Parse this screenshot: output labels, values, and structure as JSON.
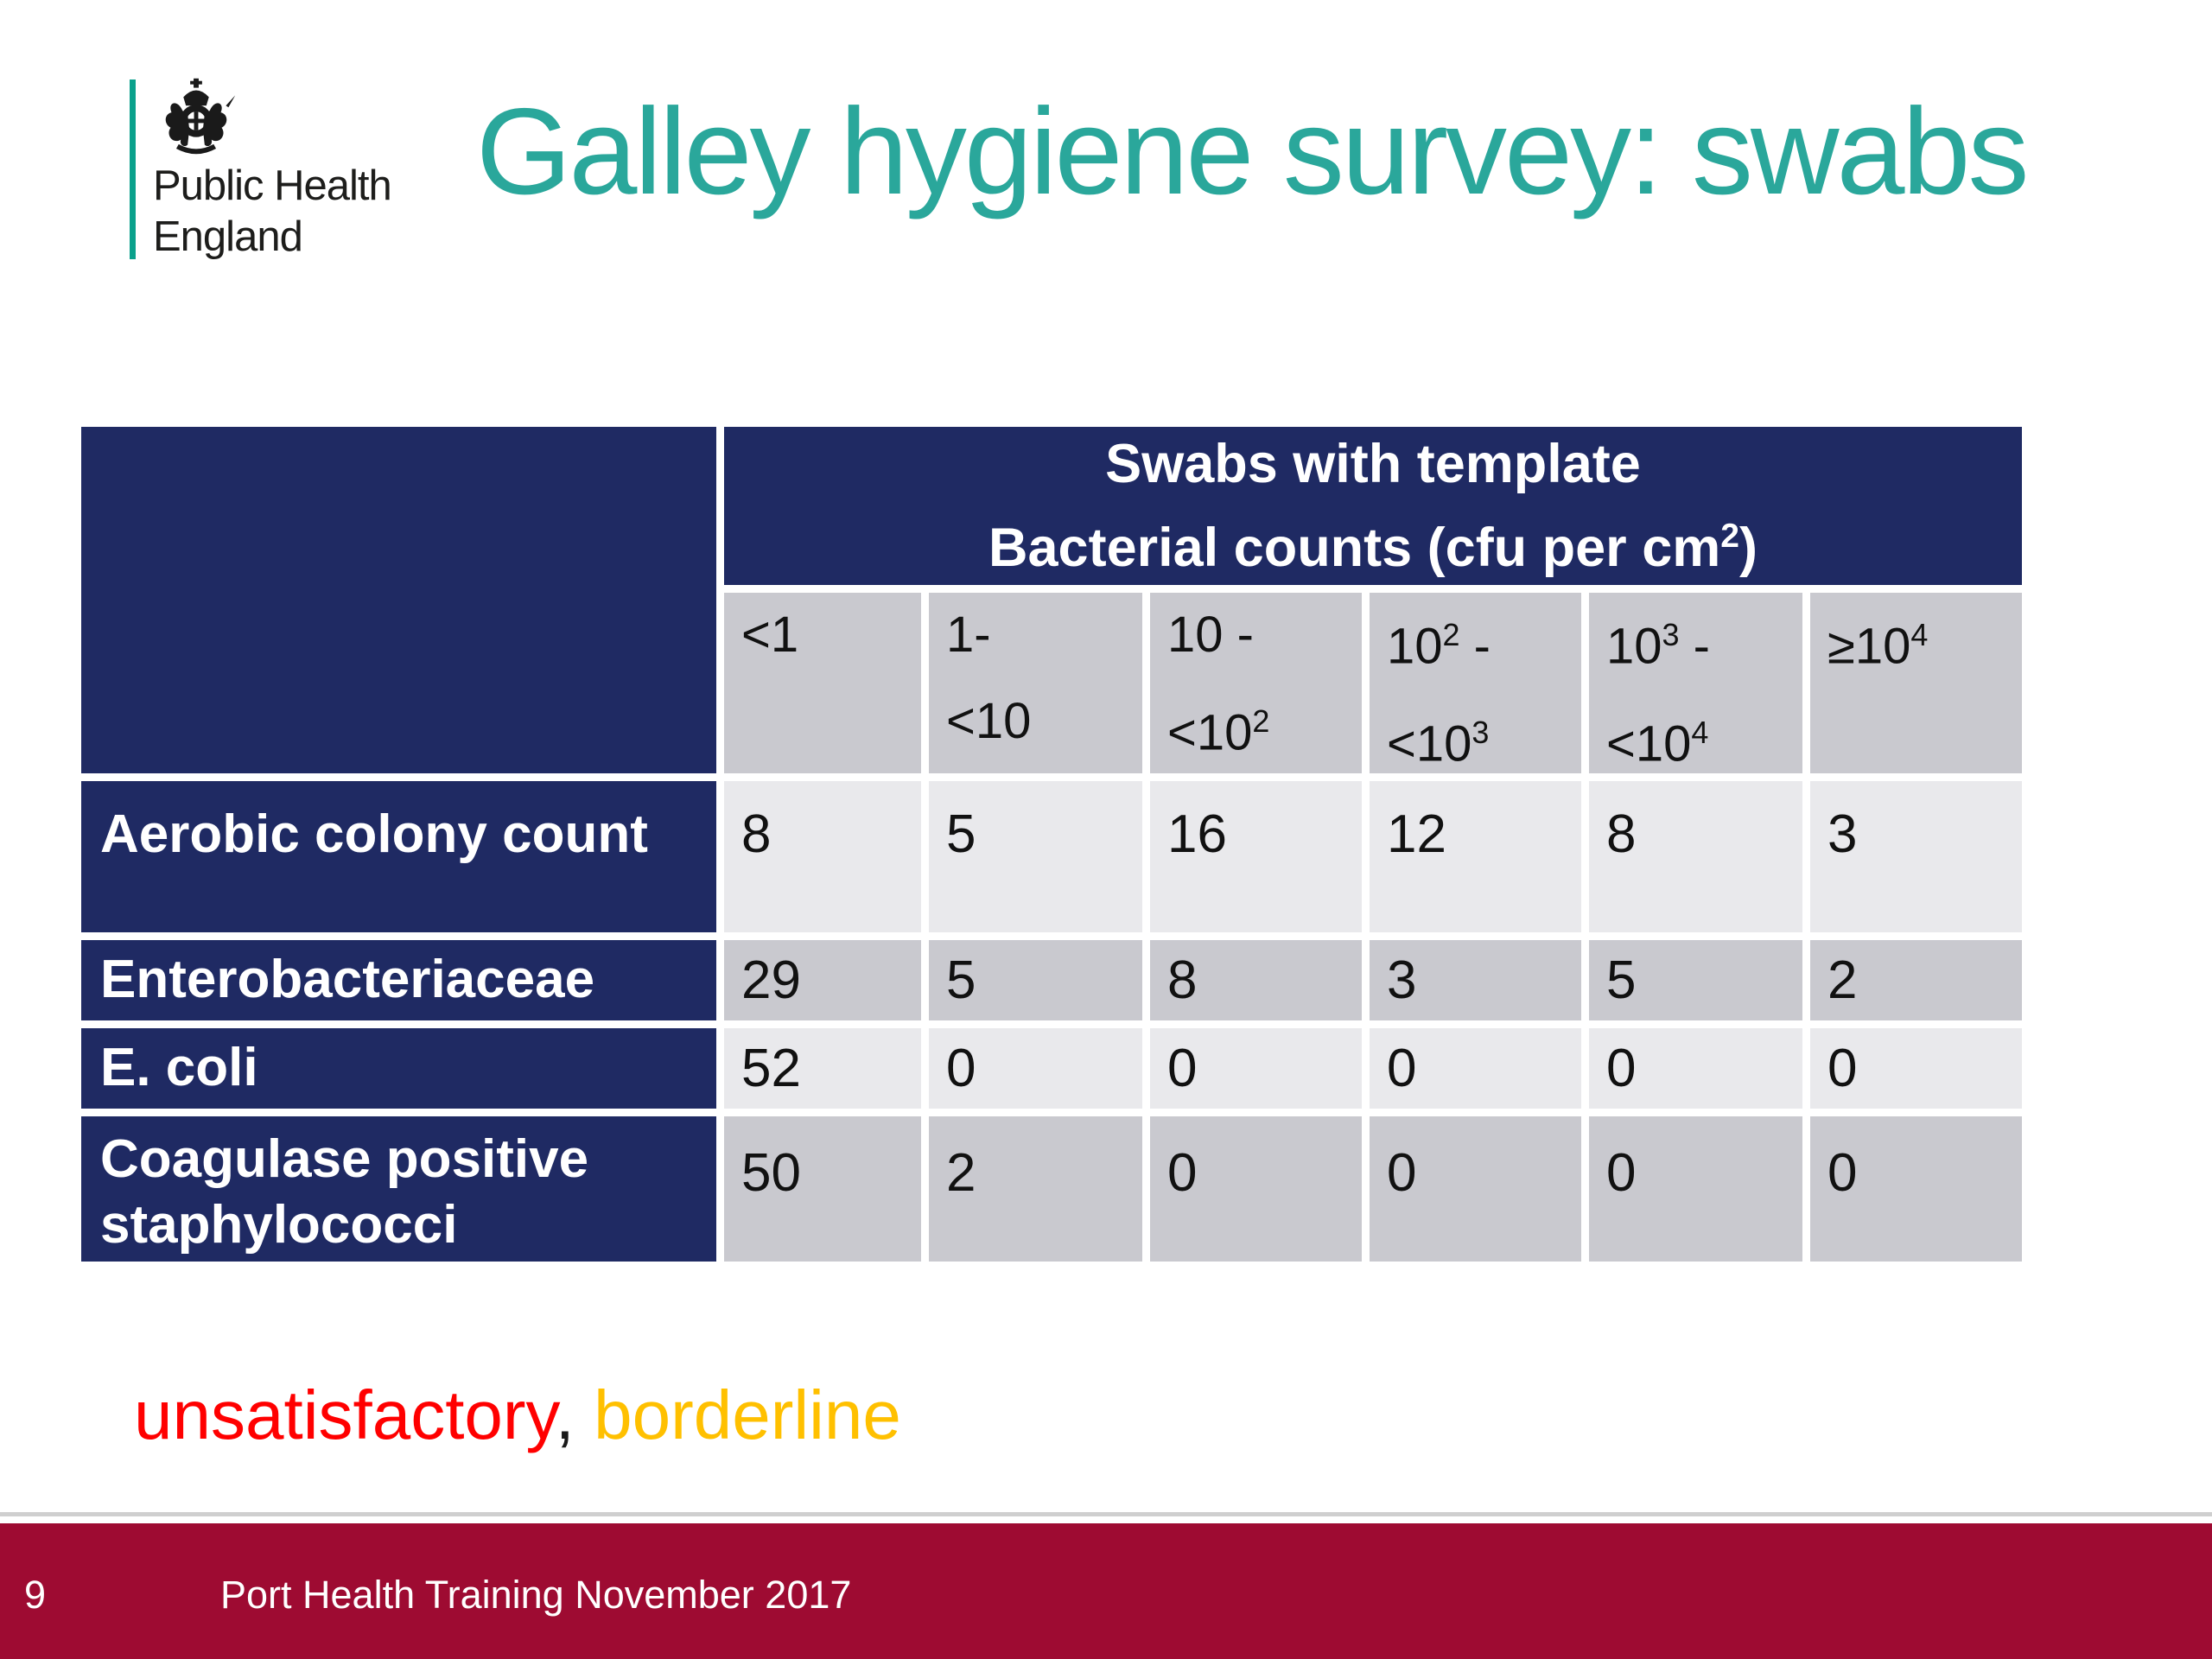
{
  "logo": {
    "line1": "Public Health",
    "line2": "England"
  },
  "title": "Galley hygiene survey: swabs",
  "table": {
    "header_line1": "Swabs with template",
    "header_line2": "Bacterial counts (cfu per cm^2)",
    "columns": [
      {
        "line1": "<1",
        "line2": ""
      },
      {
        "line1": "1-",
        "line2": "<10"
      },
      {
        "line1": "10 -",
        "line2": "<10^2"
      },
      {
        "line1": "10^2 -",
        "line2": "<10^3"
      },
      {
        "line1": "10^3 -",
        "line2": "<10^4"
      },
      {
        "line1": "≥10^4",
        "line2": ""
      }
    ],
    "rows": [
      {
        "label": "Aerobic colony count",
        "values": [
          {
            "text": "8",
            "status": "normal"
          },
          {
            "text": "5",
            "status": "normal"
          },
          {
            "text": "16",
            "status": "normal"
          },
          {
            "text": "12",
            "status": "borderline"
          },
          {
            "text": "8",
            "status": "unsatisfactory"
          },
          {
            "text": "3",
            "status": "unsatisfactory"
          }
        ]
      },
      {
        "label": "Enterobacteriaceae",
        "values": [
          {
            "text": "29",
            "status": "normal"
          },
          {
            "text": "5",
            "status": "unsatisfactory"
          },
          {
            "text": "8",
            "status": "unsatisfactory"
          },
          {
            "text": "3",
            "status": "unsatisfactory"
          },
          {
            "text": "5",
            "status": "unsatisfactory"
          },
          {
            "text": "2",
            "status": "unsatisfactory"
          }
        ]
      },
      {
        "label": "E. coli",
        "values": [
          {
            "text": "52",
            "status": "normal"
          },
          {
            "text": "0",
            "status": "normal"
          },
          {
            "text": "0",
            "status": "normal"
          },
          {
            "text": "0",
            "status": "normal"
          },
          {
            "text": "0",
            "status": "normal"
          },
          {
            "text": "0",
            "status": "normal"
          }
        ]
      },
      {
        "label": "Coagulase positive staphylococci",
        "values": [
          {
            "text": "50",
            "status": "normal"
          },
          {
            "text": "2",
            "status": "unsatisfactory"
          },
          {
            "text": "0",
            "status": "normal"
          },
          {
            "text": "0",
            "status": "normal"
          },
          {
            "text": "0",
            "status": "normal"
          },
          {
            "text": "0",
            "status": "normal"
          }
        ]
      }
    ]
  },
  "legend": {
    "unsatisfactory": "unsatisfactory",
    "separator": ",",
    "borderline": " borderline"
  },
  "footer": {
    "page_number": "9",
    "text": "Port Health Training November 2017"
  },
  "colors": {
    "navy": "#1f2a63",
    "teal_title": "#2aa79b",
    "teal_bar": "#0aa18c",
    "footer_red": "#9e0b32",
    "row_light": "#e9e9ec",
    "row_dark": "#c9c9cf",
    "unsatisfactory": "#ff0000",
    "borderline": "#ffc000"
  }
}
